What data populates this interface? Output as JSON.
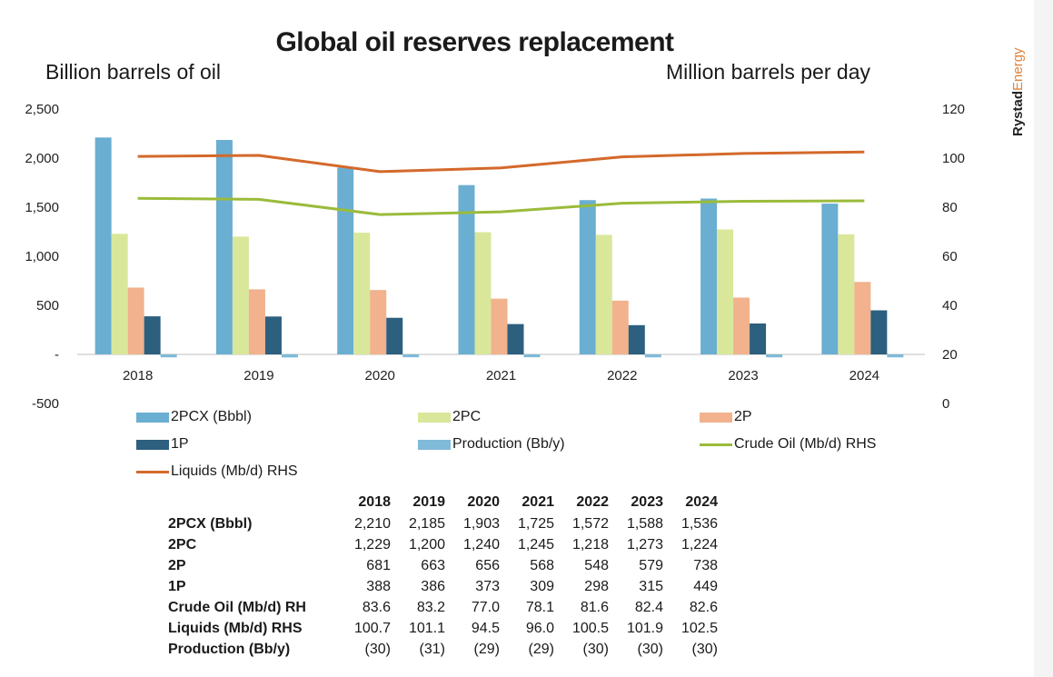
{
  "chart_data": {
    "type": "bar",
    "title": "Global oil reserves replacement",
    "ylabel_left": "Billion barrels of oil",
    "ylabel_right": "Million barrels per day",
    "categories": [
      "2018",
      "2019",
      "2020",
      "2021",
      "2022",
      "2023",
      "2024"
    ],
    "ylim_left": [
      -500,
      2500
    ],
    "ylim_right": [
      0,
      120
    ],
    "yticks_left": [
      "2,500",
      "2,000",
      "1,500",
      "1,000",
      "500",
      "-",
      "-500"
    ],
    "yticks_right": [
      "120",
      "100",
      "80",
      "60",
      "40",
      "20",
      "0"
    ],
    "series": [
      {
        "name": "2PCX (Bbbl)",
        "kind": "bar",
        "axis": "left",
        "color": "#6aaed1",
        "values": [
          2210,
          2185,
          1903,
          1725,
          1572,
          1588,
          1536
        ]
      },
      {
        "name": "2PC",
        "kind": "bar",
        "axis": "left",
        "color": "#d9e79a",
        "values": [
          1229,
          1200,
          1240,
          1245,
          1218,
          1273,
          1224
        ]
      },
      {
        "name": "2P",
        "kind": "bar",
        "axis": "left",
        "color": "#f1b28d",
        "values": [
          681,
          663,
          656,
          568,
          548,
          579,
          738
        ]
      },
      {
        "name": "1P",
        "kind": "bar",
        "axis": "left",
        "color": "#2d5f7e",
        "values": [
          388,
          386,
          373,
          309,
          298,
          315,
          449
        ]
      },
      {
        "name": "Production (Bb/y)",
        "kind": "bar",
        "axis": "left",
        "color": "#7fbad8",
        "values": [
          -30,
          -31,
          -29,
          -29,
          -30,
          -30,
          -30
        ]
      },
      {
        "name": "Crude Oil (Mb/d) RHS",
        "kind": "line",
        "axis": "right",
        "color": "#9bbb3a",
        "values": [
          83.6,
          83.2,
          77.0,
          78.1,
          81.6,
          82.4,
          82.6
        ]
      },
      {
        "name": "Liquids (Mb/d) RHS",
        "kind": "line",
        "axis": "right",
        "color": "#d4692b",
        "values": [
          100.7,
          101.1,
          94.5,
          96.0,
          100.5,
          101.9,
          102.5
        ]
      }
    ],
    "legend": "bottom"
  },
  "brand": {
    "part1": "Rystad",
    "part2": "Energy"
  },
  "table": {
    "years": [
      "2018",
      "2019",
      "2020",
      "2021",
      "2022",
      "2023",
      "2024"
    ],
    "rows": [
      {
        "label": "2PCX (Bbbl)",
        "values": [
          "2,210",
          "2,185",
          "1,903",
          "1,725",
          "1,572",
          "1,588",
          "1,536"
        ]
      },
      {
        "label": "2PC",
        "values": [
          "1,229",
          "1,200",
          "1,240",
          "1,245",
          "1,218",
          "1,273",
          "1,224"
        ]
      },
      {
        "label": "2P",
        "values": [
          "681",
          "663",
          "656",
          "568",
          "548",
          "579",
          "738"
        ]
      },
      {
        "label": "1P",
        "values": [
          "388",
          "386",
          "373",
          "309",
          "298",
          "315",
          "449"
        ]
      },
      {
        "label": "Crude Oil (Mb/d) RH",
        "values": [
          "83.6",
          "83.2",
          "77.0",
          "78.1",
          "81.6",
          "82.4",
          "82.6"
        ]
      },
      {
        "label": "Liquids (Mb/d) RHS",
        "values": [
          "100.7",
          "101.1",
          "94.5",
          "96.0",
          "100.5",
          "101.9",
          "102.5"
        ]
      },
      {
        "label": "Production (Bb/y)",
        "values": [
          "(30)",
          "(31)",
          "(29)",
          "(29)",
          "(30)",
          "(30)",
          "(30)"
        ]
      }
    ]
  }
}
